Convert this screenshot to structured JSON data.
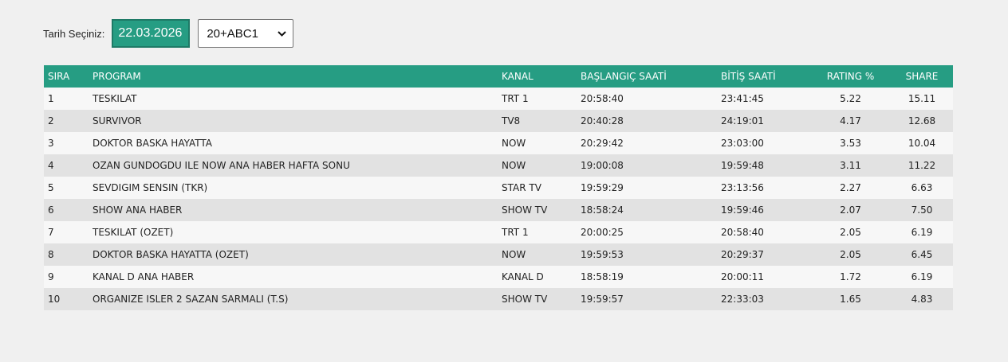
{
  "filters": {
    "date_label": "Tarih Seçiniz:",
    "date_value": "22.03.2026",
    "audience_selected": "20+ABC1"
  },
  "colors": {
    "accent": "#269d83",
    "row_odd": "#f7f7f7",
    "row_even": "#e2e2e2",
    "page_bg": "#f0f0f0"
  },
  "table": {
    "headers": {
      "sira": "SIRA",
      "program": "PROGRAM",
      "kanal": "KANAL",
      "baslangic": "BAŞLANGIÇ SAATİ",
      "bitis": "BİTİŞ SAATİ",
      "rating": "RATING %",
      "share": "SHARE"
    },
    "rows": [
      {
        "sira": "1",
        "program": "TESKILAT",
        "kanal": "TRT 1",
        "baslangic": "20:58:40",
        "bitis": "23:41:45",
        "rating": "5.22",
        "share": "15.11"
      },
      {
        "sira": "2",
        "program": "SURVIVOR",
        "kanal": "TV8",
        "baslangic": "20:40:28",
        "bitis": "24:19:01",
        "rating": "4.17",
        "share": "12.68"
      },
      {
        "sira": "3",
        "program": "DOKTOR BASKA HAYATTA",
        "kanal": "NOW",
        "baslangic": "20:29:42",
        "bitis": "23:03:00",
        "rating": "3.53",
        "share": "10.04"
      },
      {
        "sira": "4",
        "program": "OZAN GUNDOGDU ILE NOW ANA HABER HAFTA SONU",
        "kanal": "NOW",
        "baslangic": "19:00:08",
        "bitis": "19:59:48",
        "rating": "3.11",
        "share": "11.22"
      },
      {
        "sira": "5",
        "program": "SEVDIGIM SENSIN (TKR)",
        "kanal": "STAR TV",
        "baslangic": "19:59:29",
        "bitis": "23:13:56",
        "rating": "2.27",
        "share": "6.63"
      },
      {
        "sira": "6",
        "program": "SHOW ANA HABER",
        "kanal": "SHOW TV",
        "baslangic": "18:58:24",
        "bitis": "19:59:46",
        "rating": "2.07",
        "share": "7.50"
      },
      {
        "sira": "7",
        "program": "TESKILAT (OZET)",
        "kanal": "TRT 1",
        "baslangic": "20:00:25",
        "bitis": "20:58:40",
        "rating": "2.05",
        "share": "6.19"
      },
      {
        "sira": "8",
        "program": "DOKTOR BASKA HAYATTA (OZET)",
        "kanal": "NOW",
        "baslangic": "19:59:53",
        "bitis": "20:29:37",
        "rating": "2.05",
        "share": "6.45"
      },
      {
        "sira": "9",
        "program": "KANAL D ANA HABER",
        "kanal": "KANAL D",
        "baslangic": "18:58:19",
        "bitis": "20:00:11",
        "rating": "1.72",
        "share": "6.19"
      },
      {
        "sira": "10",
        "program": "ORGANIZE ISLER 2 SAZAN SARMALI (T.S)",
        "kanal": "SHOW TV",
        "baslangic": "19:59:57",
        "bitis": "22:33:03",
        "rating": "1.65",
        "share": "4.83"
      }
    ]
  }
}
